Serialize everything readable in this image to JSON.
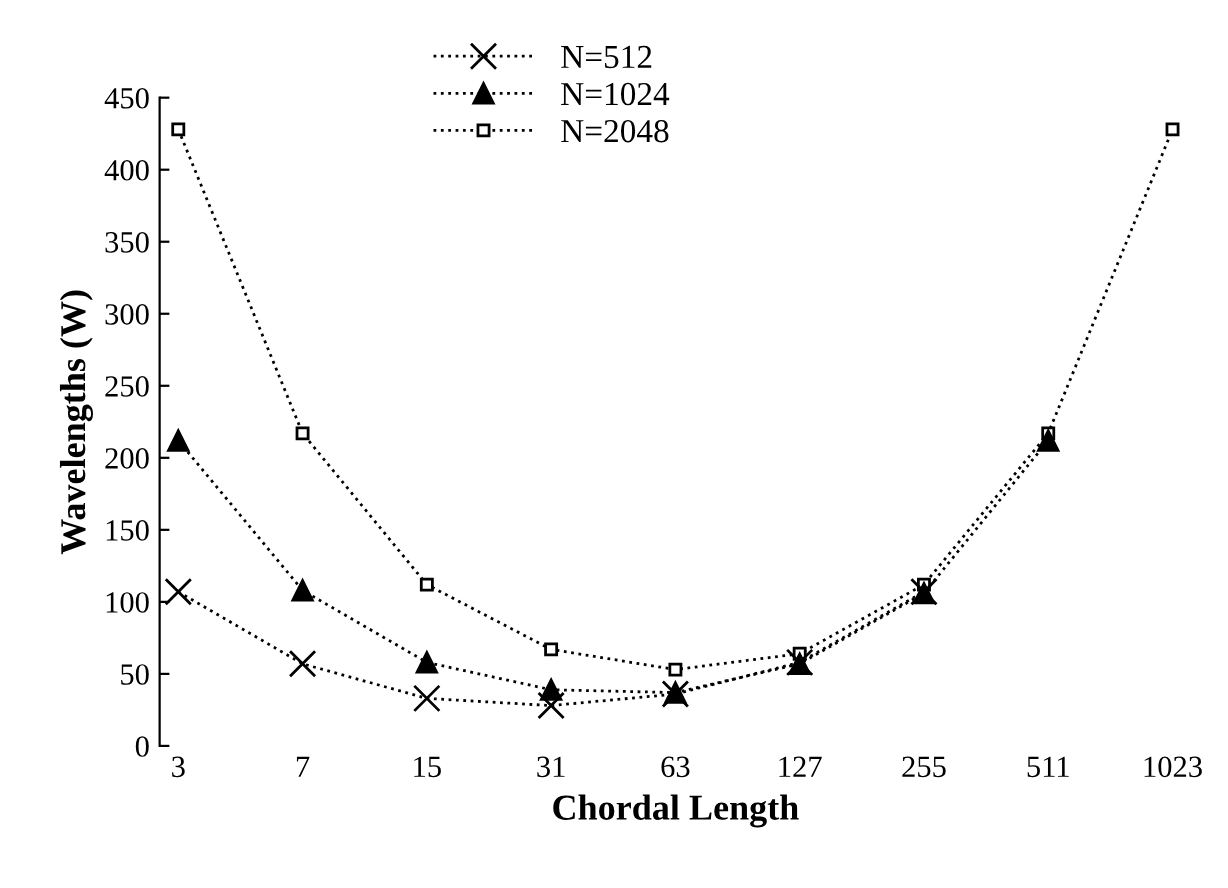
{
  "chart_data": {
    "type": "line",
    "xlabel": "Chordal Length",
    "ylabel": "Wavelengths (W)",
    "categories": [
      "3",
      "7",
      "15",
      "31",
      "63",
      "127",
      "255",
      "511",
      "1023"
    ],
    "ylim": [
      0,
      450
    ],
    "yticks": [
      0,
      50,
      100,
      150,
      200,
      250,
      300,
      350,
      400,
      450
    ],
    "grid": false,
    "legend": "top",
    "line_style": "dotted",
    "series": [
      {
        "name": "N=512",
        "color": "#000000",
        "marker": "cross",
        "values": [
          107,
          57,
          33,
          28,
          36,
          58,
          107,
          null,
          null
        ]
      },
      {
        "name": "N=1024",
        "color": "#000000",
        "marker": "triangle",
        "values": [
          212,
          108,
          58,
          39,
          37,
          57,
          106,
          212,
          null
        ]
      },
      {
        "name": "N=2048",
        "color": "#000000",
        "marker": "square",
        "values": [
          428,
          217,
          112,
          67,
          53,
          64,
          112,
          217,
          428
        ]
      }
    ]
  }
}
